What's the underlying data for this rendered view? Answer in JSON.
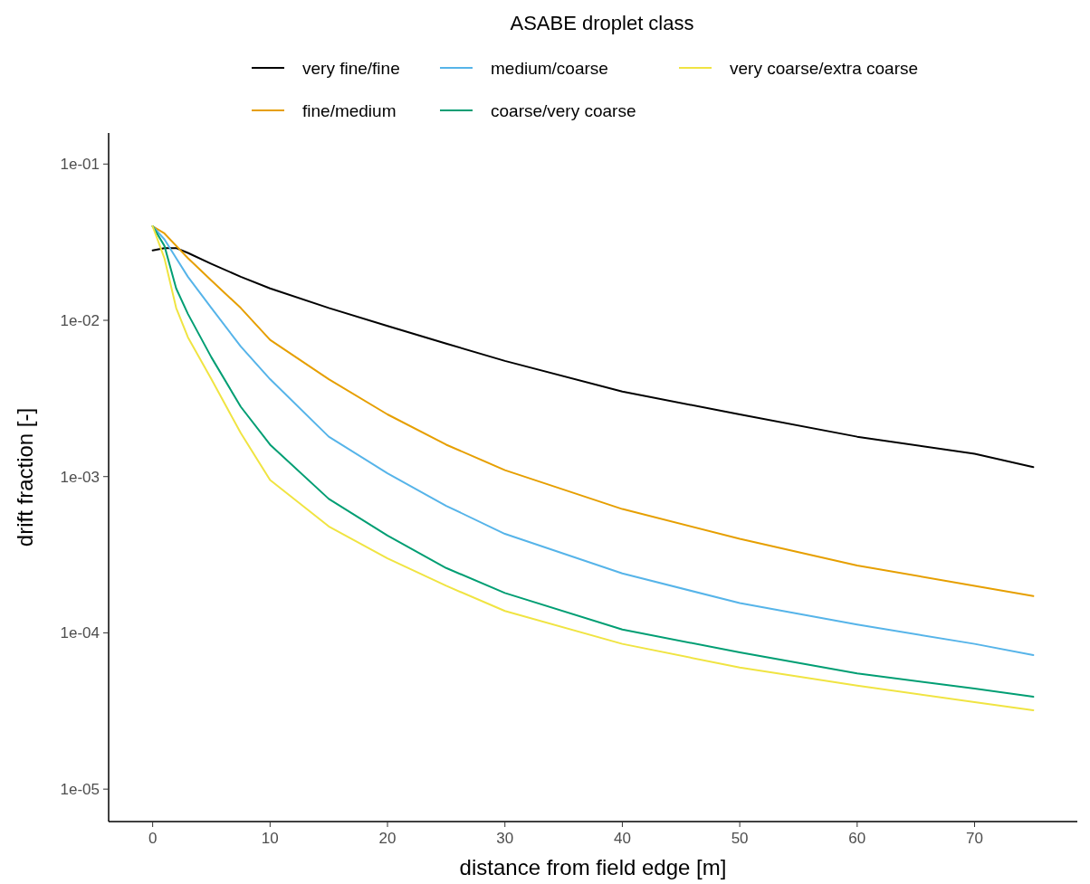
{
  "chart_data": {
    "type": "line",
    "xlabel": "distance from field edge [m]",
    "ylabel": "drift fraction [-]",
    "legend_title": "ASABE droplet class",
    "legend": "top",
    "log": "y",
    "grid": false,
    "marker": "none",
    "line_style": "solid",
    "x": [
      0,
      1,
      2,
      3,
      5,
      7.5,
      10,
      15,
      20,
      25,
      30,
      40,
      50,
      60,
      70,
      75
    ],
    "xlim": [
      -3.75,
      78.75
    ],
    "xticks": [
      0,
      10,
      20,
      30,
      40,
      50,
      60,
      70
    ],
    "ylim": [
      6.2e-06,
      0.158
    ],
    "yticks": [
      {
        "value": 0.1,
        "label": "1e-01"
      },
      {
        "value": 0.01,
        "label": "1e-02"
      },
      {
        "value": 0.001,
        "label": "1e-03"
      },
      {
        "value": 0.0001,
        "label": "1e-04"
      },
      {
        "value": 1e-05,
        "label": "1e-05"
      }
    ],
    "series": [
      {
        "name": "very fine/fine",
        "color": "#000000",
        "values": [
          0.028,
          0.029,
          0.029,
          0.027,
          0.023,
          0.019,
          0.016,
          0.012,
          0.0092,
          0.0071,
          0.0055,
          0.0035,
          0.0025,
          0.0018,
          0.0014,
          0.00115
        ]
      },
      {
        "name": "fine/medium",
        "color": "#e69f00",
        "values": [
          0.04,
          0.036,
          0.03,
          0.025,
          0.018,
          0.012,
          0.0075,
          0.0042,
          0.0025,
          0.0016,
          0.0011,
          0.00062,
          0.0004,
          0.00027,
          0.0002,
          0.000172
        ]
      },
      {
        "name": "medium/coarse",
        "color": "#56b4e9",
        "values": [
          0.04,
          0.033,
          0.025,
          0.019,
          0.012,
          0.0068,
          0.0042,
          0.0018,
          0.00105,
          0.00065,
          0.00043,
          0.00024,
          0.000155,
          0.000113,
          8.5e-05,
          7.2e-05
        ]
      },
      {
        "name": "coarse/very coarse",
        "color": "#009e73",
        "values": [
          0.04,
          0.03,
          0.016,
          0.011,
          0.0058,
          0.0028,
          0.0016,
          0.00072,
          0.00042,
          0.00026,
          0.00018,
          0.000105,
          7.5e-05,
          5.5e-05,
          4.4e-05,
          3.9e-05
        ]
      },
      {
        "name": "very coarse/extra coarse",
        "color": "#f0e442",
        "values": [
          0.04,
          0.025,
          0.012,
          0.0078,
          0.0042,
          0.0019,
          0.00095,
          0.00048,
          0.0003,
          0.0002,
          0.000138,
          8.5e-05,
          6e-05,
          4.6e-05,
          3.6e-05,
          3.2e-05
        ]
      }
    ]
  }
}
